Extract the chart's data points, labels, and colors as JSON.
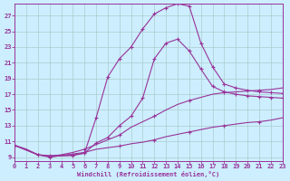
{
  "xlabel": "Windchill (Refroidissement éolien,°C)",
  "bg_color": "#cceeff",
  "grid_color": "#aacccc",
  "line_color": "#993399",
  "xlim": [
    0,
    23
  ],
  "ylim": [
    8.5,
    28.5
  ],
  "ytick_vals": [
    9,
    11,
    13,
    15,
    17,
    19,
    21,
    23,
    25,
    27
  ],
  "xtick_vals": [
    0,
    1,
    2,
    3,
    4,
    5,
    6,
    7,
    8,
    9,
    10,
    11,
    12,
    13,
    14,
    15,
    16,
    17,
    18,
    19,
    20,
    21,
    22,
    23
  ],
  "series": [
    {
      "name": "line1_flat",
      "x": [
        0,
        1,
        2,
        3,
        4,
        5,
        6,
        7,
        8,
        9,
        10,
        11,
        12,
        13,
        14,
        15,
        16,
        17,
        18,
        19,
        20,
        21,
        22,
        23
      ],
      "y": [
        10.5,
        10.0,
        9.3,
        9.0,
        9.2,
        9.4,
        9.6,
        10.0,
        10.2,
        10.4,
        10.7,
        10.9,
        11.2,
        11.6,
        11.9,
        12.2,
        12.5,
        12.8,
        13.0,
        13.2,
        13.4,
        13.5,
        13.7,
        14.0
      ],
      "markevery": 3
    },
    {
      "name": "line2_gentle",
      "x": [
        0,
        1,
        2,
        3,
        4,
        5,
        6,
        7,
        8,
        9,
        10,
        11,
        12,
        13,
        14,
        15,
        16,
        17,
        18,
        19,
        20,
        21,
        22,
        23
      ],
      "y": [
        10.5,
        10.0,
        9.3,
        9.1,
        9.3,
        9.6,
        10.0,
        10.6,
        11.2,
        11.8,
        12.8,
        13.5,
        14.2,
        15.0,
        15.7,
        16.2,
        16.6,
        17.0,
        17.2,
        17.3,
        17.4,
        17.5,
        17.6,
        17.8
      ],
      "markevery": 3
    },
    {
      "name": "line3_big_arc",
      "x": [
        0,
        2,
        3,
        5,
        6,
        7,
        8,
        9,
        10,
        11,
        12,
        13,
        14,
        15,
        16,
        17,
        18,
        19,
        20,
        21,
        22,
        23
      ],
      "y": [
        10.5,
        9.3,
        9.1,
        9.2,
        9.5,
        14.0,
        19.2,
        21.5,
        23.0,
        25.3,
        27.2,
        28.0,
        28.5,
        28.2,
        23.5,
        20.5,
        18.3,
        17.8,
        17.5,
        17.3,
        17.2,
        17.1
      ],
      "markevery": 1
    },
    {
      "name": "line4_medium_arc",
      "x": [
        0,
        2,
        3,
        5,
        6,
        7,
        8,
        9,
        10,
        11,
        12,
        13,
        14,
        15,
        16,
        17,
        18,
        19,
        20,
        21,
        22,
        23
      ],
      "y": [
        10.5,
        9.3,
        9.2,
        9.3,
        9.5,
        10.8,
        11.5,
        13.0,
        14.2,
        16.5,
        21.5,
        23.5,
        24.0,
        22.5,
        20.2,
        18.0,
        17.3,
        17.0,
        16.8,
        16.7,
        16.6,
        16.5
      ],
      "markevery": 1
    }
  ]
}
